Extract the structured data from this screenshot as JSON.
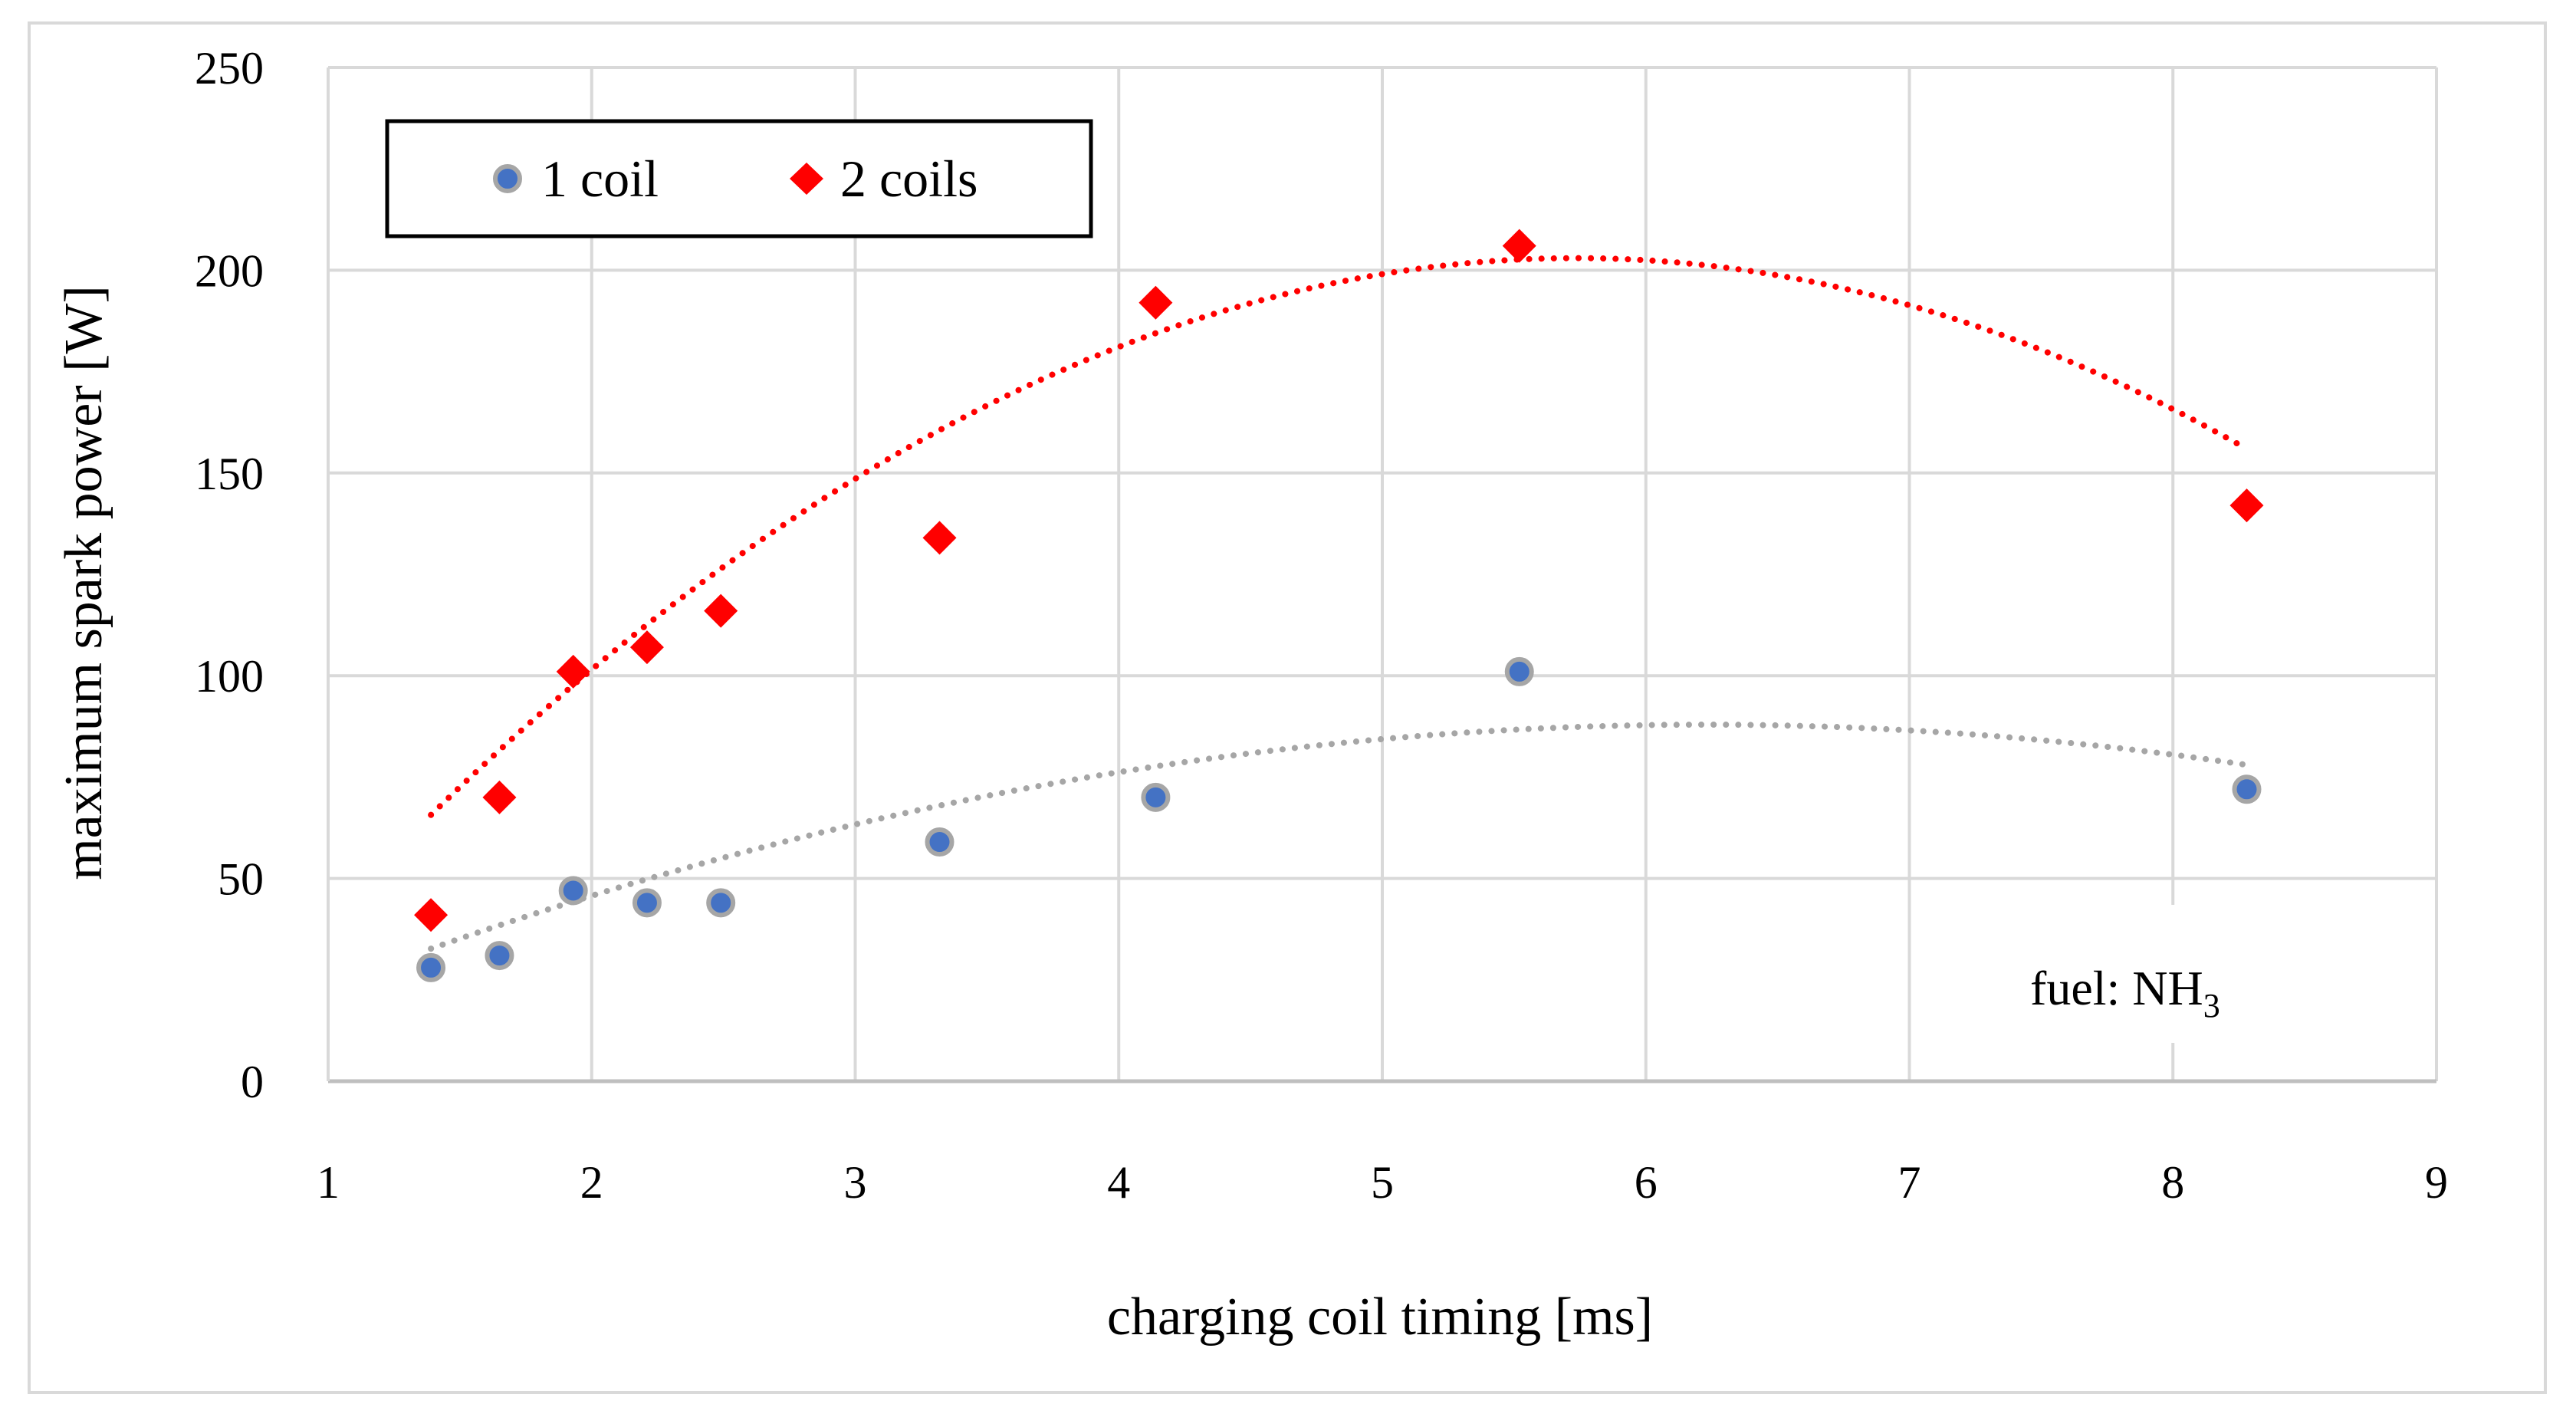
{
  "chart_data": {
    "type": "scatter",
    "xlabel": "charging coil timing [ms]",
    "ylabel": "maximum spark power [W]",
    "xlim": [
      1,
      9
    ],
    "ylim": [
      0,
      250
    ],
    "xticks": [
      "1",
      "2",
      "3",
      "4",
      "5",
      "6",
      "7",
      "8",
      "9"
    ],
    "yticks": [
      "0",
      "50",
      "100",
      "150",
      "200",
      "250"
    ],
    "grid": true,
    "legend_position": "top-left",
    "annotation": {
      "prefix": "fuel: NH",
      "subscript": "3"
    },
    "series": [
      {
        "name": "1 coil",
        "marker": "circle",
        "color": "#4472c4",
        "edge_color": "#a6a6a6",
        "trend_color": "#a6a6a6",
        "x": [
          1.39,
          1.65,
          1.93,
          2.21,
          2.49,
          3.32,
          4.14,
          5.52,
          8.28
        ],
        "y": [
          28,
          31,
          47,
          44,
          44,
          59,
          70,
          101,
          72
        ],
        "trend": {
          "type": "poly2",
          "x_range": [
            1.39,
            8.28
          ],
          "coeffs": [
            -2.36,
            29.4,
            -3.63
          ]
        }
      },
      {
        "name": "2 coils",
        "marker": "diamond",
        "color": "#ff0000",
        "trend_color": "#ff0000",
        "x": [
          1.39,
          1.65,
          1.93,
          2.21,
          2.49,
          3.32,
          4.14,
          5.52,
          8.28
        ],
        "y": [
          41,
          70,
          101,
          107,
          116,
          134,
          192,
          206,
          142
        ],
        "trend": {
          "type": "poly2",
          "x_range": [
            1.39,
            8.28
          ],
          "coeffs": [
            -7.27,
            83.4,
            -36.2
          ]
        }
      }
    ]
  }
}
